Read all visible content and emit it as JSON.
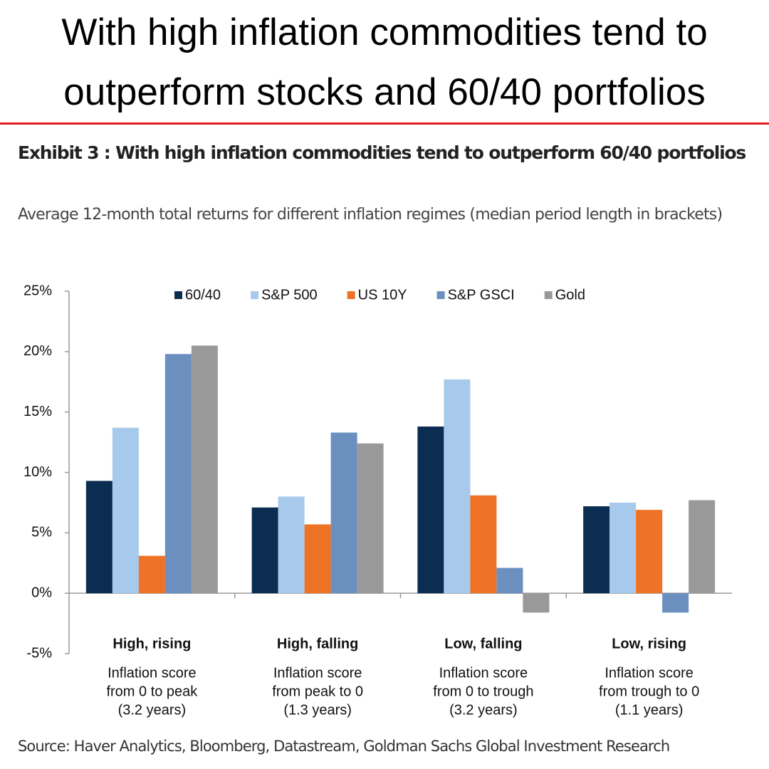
{
  "header": {
    "lines": [
      "With high inflation commodities tend to",
      "outperform stocks and 60/40 portfolios"
    ]
  },
  "chart_data": {
    "type": "bar",
    "title": "Exhibit 3 : With high inflation commodities tend to outperform 60/40 portfolios",
    "subtitle": "Average 12-month total returns for different inflation regimes (median period length in brackets)",
    "categories": [
      "High, rising",
      "High, falling",
      "Low, falling",
      "Low, rising"
    ],
    "category_notes": [
      [
        "Inflation score",
        "from 0 to peak",
        "(3.2 years)"
      ],
      [
        "Inflation score",
        "from peak to 0",
        "(1.3 years)"
      ],
      [
        "Inflation score",
        "from 0 to trough",
        "(3.2 years)"
      ],
      [
        "Inflation score",
        "from trough to 0",
        "(1.1 years)"
      ]
    ],
    "series": [
      {
        "name": "60/40",
        "color": "#0b2d52",
        "values": [
          9.3,
          7.1,
          13.8,
          7.2
        ]
      },
      {
        "name": "S&P 500",
        "color": "#a6c9ec",
        "values": [
          13.7,
          8.0,
          17.7,
          7.5
        ]
      },
      {
        "name": "US 10Y",
        "color": "#ee7326",
        "values": [
          3.1,
          5.7,
          8.1,
          6.9
        ]
      },
      {
        "name": "S&P GSCI",
        "color": "#6b8fbf",
        "values": [
          19.8,
          13.3,
          2.1,
          -1.6
        ]
      },
      {
        "name": "Gold",
        "color": "#999999",
        "values": [
          20.5,
          12.4,
          -1.6,
          7.7
        ]
      }
    ],
    "ylim": [
      -5,
      25
    ],
    "yticks": [
      {
        "value": -5,
        "label": "-5%"
      },
      {
        "value": 0,
        "label": "0%"
      },
      {
        "value": 5,
        "label": "5%"
      },
      {
        "value": 10,
        "label": "10%"
      },
      {
        "value": 15,
        "label": "15%"
      },
      {
        "value": 20,
        "label": "20%"
      },
      {
        "value": 25,
        "label": "25%"
      }
    ],
    "grid": false,
    "legend": "top",
    "source": "Source: Haver Analytics, Bloomberg, Datastream, Goldman Sachs Global Investment Research"
  }
}
